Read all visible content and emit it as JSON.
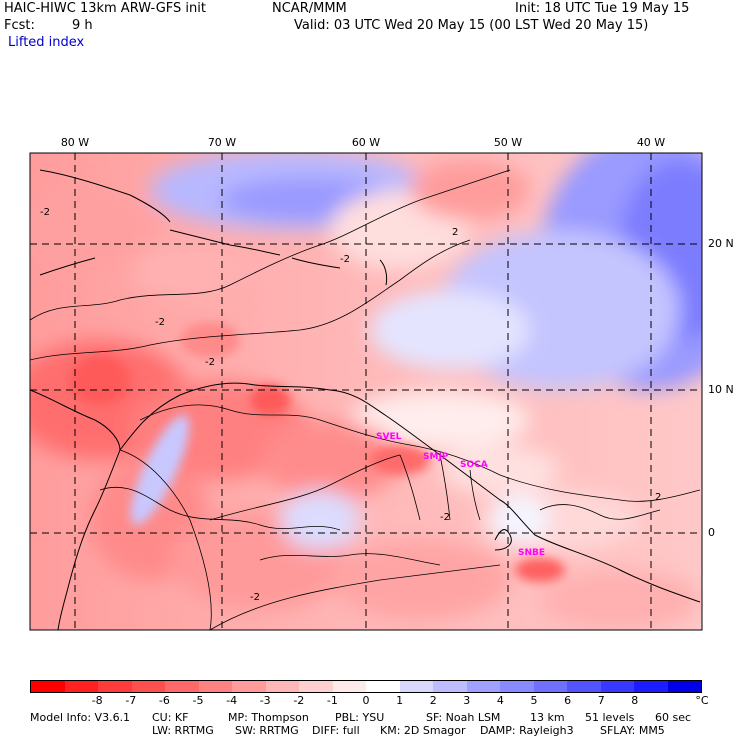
{
  "header": {
    "model": "HAIC-HIWC 13km ARW-GFS init",
    "org": "NCAR/MMM",
    "init": "Init: 18 UTC Tue 19 May 15",
    "fcst_label": "Fcst:",
    "fcst_value": "9 h",
    "valid": "Valid: 03 UTC Wed 20 May 15 (00 LST Wed 20 May 15)",
    "field": "Lifted index"
  },
  "longitude_labels": [
    "80 W",
    "70 W",
    "60 W",
    "50 W",
    "40 W"
  ],
  "latitude_labels": [
    "20 N",
    "10 N",
    "0"
  ],
  "stations": [
    "SVEL",
    "SMJP",
    "SOCA",
    "SNBE"
  ],
  "contour_labels": [
    "2",
    "-2",
    "-2",
    "-2",
    "-2",
    "2",
    "-2",
    "-2"
  ],
  "colorbar": {
    "colors": [
      "#ff0000",
      "#ff2020",
      "#ff3c3c",
      "#ff5050",
      "#ff6969",
      "#ff8282",
      "#ff9b9b",
      "#ffb6b6",
      "#ffd0d0",
      "#ffeaea",
      "#ffffff",
      "#d8d8ff",
      "#bcbcff",
      "#a0a0ff",
      "#8a8aff",
      "#7070ff",
      "#5454ff",
      "#3838ff",
      "#1c1cff",
      "#0000e6"
    ],
    "labels": [
      "-8",
      "-7",
      "-6",
      "-5",
      "-4",
      "-3",
      "-2",
      "-1",
      "0",
      "1",
      "2",
      "3",
      "4",
      "5",
      "6",
      "7",
      "8"
    ],
    "unit": "°C"
  },
  "footer": {
    "line1": [
      "Model Info: V3.6.1",
      "CU: KF",
      "MP: Thompson",
      "PBL: YSU",
      "SF: Noah LSM",
      "13 km",
      "51 levels",
      "60 sec"
    ],
    "line2": [
      "LW: RRTMG",
      "SW: RRTMG",
      "DIFF: full",
      "KM: 2D Smagor",
      "DAMP: Rayleigh3",
      "SFLAY: MM5"
    ]
  }
}
